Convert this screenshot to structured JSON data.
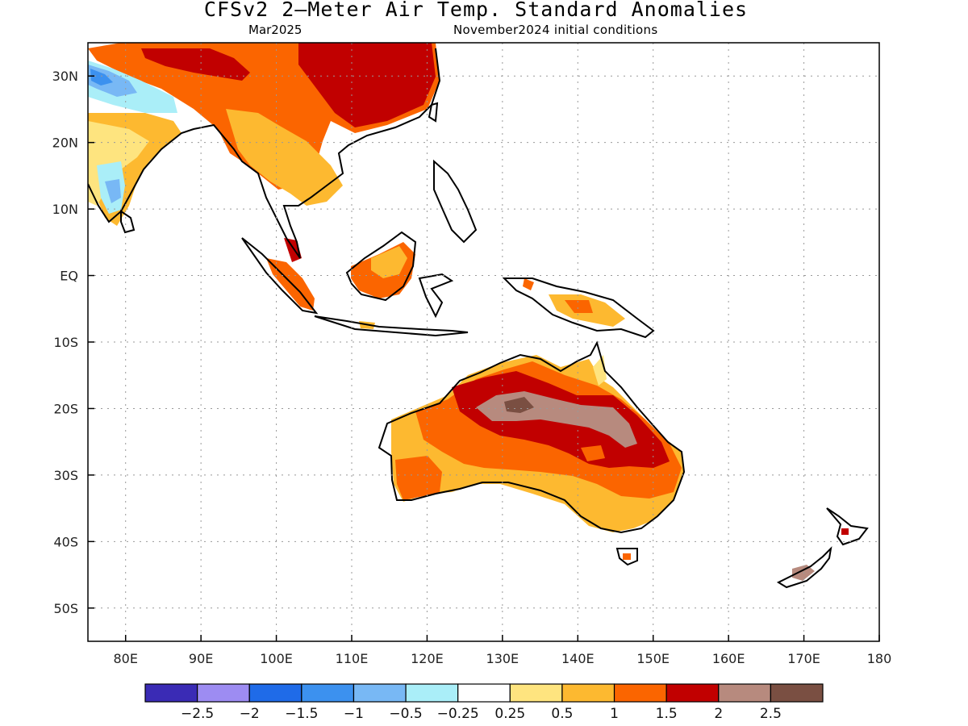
{
  "title": "CFSv2 2–Meter Air Temp. Standard Anomalies",
  "subtitle_left": "Mar2025",
  "subtitle_right": "November2024 initial conditions",
  "map": {
    "lon_range": [
      75,
      180
    ],
    "lat_range": [
      -55,
      35
    ],
    "lon_ticks": [
      {
        "value": 80,
        "label": "80E"
      },
      {
        "value": 90,
        "label": "90E"
      },
      {
        "value": 100,
        "label": "100E"
      },
      {
        "value": 110,
        "label": "110E"
      },
      {
        "value": 120,
        "label": "120E"
      },
      {
        "value": 130,
        "label": "130E"
      },
      {
        "value": 140,
        "label": "140E"
      },
      {
        "value": 150,
        "label": "150E"
      },
      {
        "value": 160,
        "label": "160E"
      },
      {
        "value": 170,
        "label": "170E"
      },
      {
        "value": 180,
        "label": "180"
      }
    ],
    "lat_ticks": [
      {
        "value": 30,
        "label": "30N"
      },
      {
        "value": 20,
        "label": "20N"
      },
      {
        "value": 10,
        "label": "10N"
      },
      {
        "value": 0,
        "label": "EQ"
      },
      {
        "value": -10,
        "label": "10S"
      },
      {
        "value": -20,
        "label": "20S"
      },
      {
        "value": -30,
        "label": "30S"
      },
      {
        "value": -40,
        "label": "40S"
      },
      {
        "value": -50,
        "label": "50S"
      }
    ],
    "grid": true
  },
  "colorbar": {
    "colors": [
      "#3a2bb5",
      "#9d8cf2",
      "#1f6be8",
      "#3c91ef",
      "#78b8f5",
      "#aaeef8",
      "#ffffff",
      "#fee47f",
      "#fdb930",
      "#fb6500",
      "#c10000",
      "#b78a7e",
      "#7a4f42"
    ],
    "labels": [
      "−2.5",
      "−2",
      "−1.5",
      "−1",
      "−0.5",
      "−0.25",
      "0.25",
      "0.5",
      "1",
      "1.5",
      "2",
      "2.5"
    ]
  }
}
